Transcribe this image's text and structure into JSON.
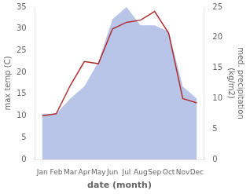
{
  "chart_data": {
    "type": "line",
    "categories": [
      "Jan",
      "Feb",
      "Mar",
      "Apr",
      "May",
      "Jun",
      "Jul",
      "Aug",
      "Sep",
      "Oct",
      "Nov",
      "Dec"
    ],
    "series": [
      {
        "type": "area",
        "color": "#b8c4e8",
        "axis": "y2",
        "values": [
          7.5,
          7.5,
          10.0,
          12.0,
          16.0,
          23.0,
          25.0,
          22.0,
          22.0,
          21.0,
          12.0,
          10.0
        ]
      },
      {
        "type": "line",
        "color": "#b03030",
        "values": [
          10.0,
          10.5,
          17.0,
          22.5,
          22.0,
          30.0,
          31.5,
          32.0,
          34.0,
          29.0,
          14.0,
          13.0
        ]
      }
    ],
    "xlabel": "date (month)",
    "ylabel": "max temp (C)",
    "y2label": [
      "med. precipitation",
      "(kg/m2)"
    ],
    "ylim": [
      0,
      35
    ],
    "yticks": [
      0,
      5,
      10,
      15,
      20,
      25,
      30,
      35
    ],
    "y2lim": [
      0,
      25
    ],
    "y2ticks": [
      0,
      5,
      10,
      15,
      20,
      25
    ],
    "grid": false
  }
}
